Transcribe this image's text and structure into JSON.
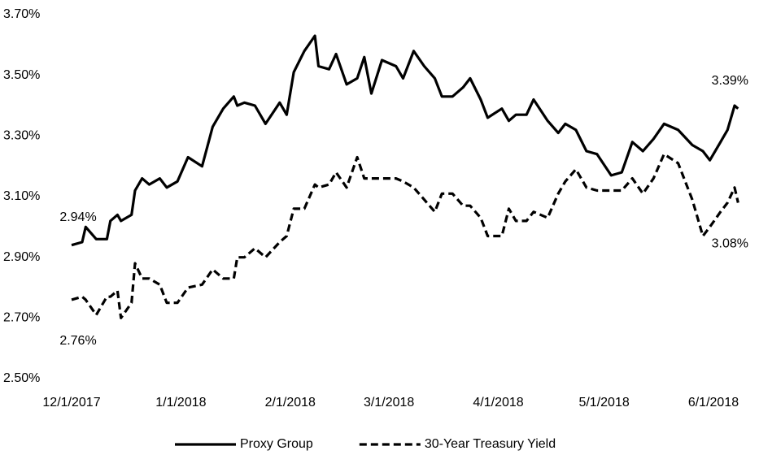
{
  "chart_data": {
    "type": "line",
    "x": [
      "2017-12-01",
      "2017-12-04",
      "2017-12-05",
      "2017-12-08",
      "2017-12-11",
      "2017-12-12",
      "2017-12-14",
      "2017-12-15",
      "2017-12-18",
      "2017-12-19",
      "2017-12-21",
      "2017-12-23",
      "2017-12-26",
      "2017-12-28",
      "2017-12-31",
      "2018-01-03",
      "2018-01-07",
      "2018-01-10",
      "2018-01-13",
      "2018-01-16",
      "2018-01-17",
      "2018-01-19",
      "2018-01-22",
      "2018-01-25",
      "2018-01-29",
      "2018-01-31",
      "2018-02-02",
      "2018-02-05",
      "2018-02-08",
      "2018-02-09",
      "2018-02-12",
      "2018-02-14",
      "2018-02-17",
      "2018-02-20",
      "2018-02-22",
      "2018-02-24",
      "2018-02-27",
      "2018-03-03",
      "2018-03-05",
      "2018-03-08",
      "2018-03-11",
      "2018-03-14",
      "2018-03-16",
      "2018-03-19",
      "2018-03-22",
      "2018-03-24",
      "2018-03-27",
      "2018-03-29",
      "2018-04-02",
      "2018-04-04",
      "2018-04-06",
      "2018-04-09",
      "2018-04-11",
      "2018-04-15",
      "2018-04-18",
      "2018-04-20",
      "2018-04-23",
      "2018-04-26",
      "2018-04-29",
      "2018-05-03",
      "2018-05-06",
      "2018-05-09",
      "2018-05-12",
      "2018-05-15",
      "2018-05-18",
      "2018-05-22",
      "2018-05-26",
      "2018-05-29",
      "2018-05-31",
      "2018-06-03",
      "2018-06-05",
      "2018-06-07",
      "2018-06-08"
    ],
    "series": [
      {
        "name": "Proxy Group",
        "color": "#000000",
        "line_style": "solid",
        "values": [
          2.94,
          2.95,
          3.0,
          2.96,
          2.96,
          3.02,
          3.04,
          3.02,
          3.04,
          3.12,
          3.16,
          3.14,
          3.16,
          3.13,
          3.15,
          3.23,
          3.2,
          3.33,
          3.39,
          3.43,
          3.4,
          3.41,
          3.4,
          3.34,
          3.41,
          3.37,
          3.51,
          3.58,
          3.63,
          3.53,
          3.52,
          3.57,
          3.47,
          3.49,
          3.56,
          3.44,
          3.55,
          3.53,
          3.49,
          3.58,
          3.53,
          3.49,
          3.43,
          3.43,
          3.46,
          3.49,
          3.42,
          3.36,
          3.39,
          3.35,
          3.37,
          3.37,
          3.42,
          3.35,
          3.31,
          3.34,
          3.32,
          3.25,
          3.24,
          3.17,
          3.18,
          3.28,
          3.25,
          3.29,
          3.34,
          3.32,
          3.27,
          3.25,
          3.22,
          3.28,
          3.32,
          3.4,
          3.39
        ],
        "value_labels": [
          "2.94%",
          null,
          null,
          null,
          null,
          null,
          null,
          null,
          null,
          null,
          null,
          null,
          null,
          null,
          null,
          null,
          null,
          null,
          null,
          null,
          null,
          null,
          null,
          null,
          null,
          null,
          null,
          null,
          null,
          null,
          null,
          null,
          null,
          null,
          null,
          null,
          null,
          null,
          null,
          null,
          null,
          null,
          null,
          null,
          null,
          null,
          null,
          null,
          null,
          null,
          null,
          null,
          null,
          null,
          null,
          null,
          null,
          null,
          null,
          null,
          null,
          null,
          null,
          null,
          null,
          null,
          null,
          null,
          null,
          null,
          null,
          null,
          "3.39%"
        ]
      },
      {
        "name": "30-Year Treasury Yield",
        "color": "#000000",
        "line_style": "dashed",
        "values": [
          2.76,
          2.77,
          2.76,
          2.71,
          2.77,
          2.77,
          2.79,
          2.7,
          2.75,
          2.88,
          2.83,
          2.83,
          2.81,
          2.75,
          2.75,
          2.8,
          2.81,
          2.86,
          2.83,
          2.83,
          2.9,
          2.9,
          2.93,
          2.9,
          2.95,
          2.97,
          3.06,
          3.06,
          3.14,
          3.13,
          3.14,
          3.18,
          3.13,
          3.23,
          3.16,
          3.16,
          3.16,
          3.16,
          3.15,
          3.13,
          3.09,
          3.05,
          3.11,
          3.11,
          3.07,
          3.07,
          3.03,
          2.97,
          2.97,
          3.06,
          3.02,
          3.02,
          3.05,
          3.03,
          3.11,
          3.15,
          3.19,
          3.13,
          3.12,
          3.12,
          3.12,
          3.16,
          3.11,
          3.16,
          3.24,
          3.21,
          3.09,
          2.97,
          3.0,
          3.05,
          3.08,
          3.13,
          3.08
        ],
        "value_labels": [
          "2.76%",
          null,
          null,
          null,
          null,
          null,
          null,
          null,
          null,
          null,
          null,
          null,
          null,
          null,
          null,
          null,
          null,
          null,
          null,
          null,
          null,
          null,
          null,
          null,
          null,
          null,
          null,
          null,
          null,
          null,
          null,
          null,
          null,
          null,
          null,
          null,
          null,
          null,
          null,
          null,
          null,
          null,
          null,
          null,
          null,
          null,
          null,
          null,
          null,
          null,
          null,
          null,
          null,
          null,
          null,
          null,
          null,
          null,
          null,
          null,
          null,
          null,
          null,
          null,
          null,
          null,
          null,
          null,
          null,
          null,
          null,
          null,
          "3.08%"
        ]
      }
    ],
    "xlim": [
      "2017-12-01",
      "2018-06-10"
    ],
    "xticks": [
      {
        "value": "2017-12-01",
        "label": "12/1/2017"
      },
      {
        "value": "2018-01-01",
        "label": "1/1/2018"
      },
      {
        "value": "2018-02-01",
        "label": "2/1/2018"
      },
      {
        "value": "2018-03-01",
        "label": "3/1/2018"
      },
      {
        "value": "2018-04-01",
        "label": "4/1/2018"
      },
      {
        "value": "2018-05-01",
        "label": "5/1/2018"
      },
      {
        "value": "2018-06-01",
        "label": "6/1/2018"
      }
    ],
    "ylim": [
      2.5,
      3.7
    ],
    "yticks": [
      {
        "value": 2.5,
        "label": "2.50%"
      },
      {
        "value": 2.7,
        "label": "2.70%"
      },
      {
        "value": 2.9,
        "label": "2.90%"
      },
      {
        "value": 3.1,
        "label": "3.10%"
      },
      {
        "value": 3.3,
        "label": "3.30%"
      },
      {
        "value": 3.5,
        "label": "3.50%"
      },
      {
        "value": 3.7,
        "label": "3.70%"
      }
    ],
    "grid": false,
    "legend": "bottom"
  }
}
